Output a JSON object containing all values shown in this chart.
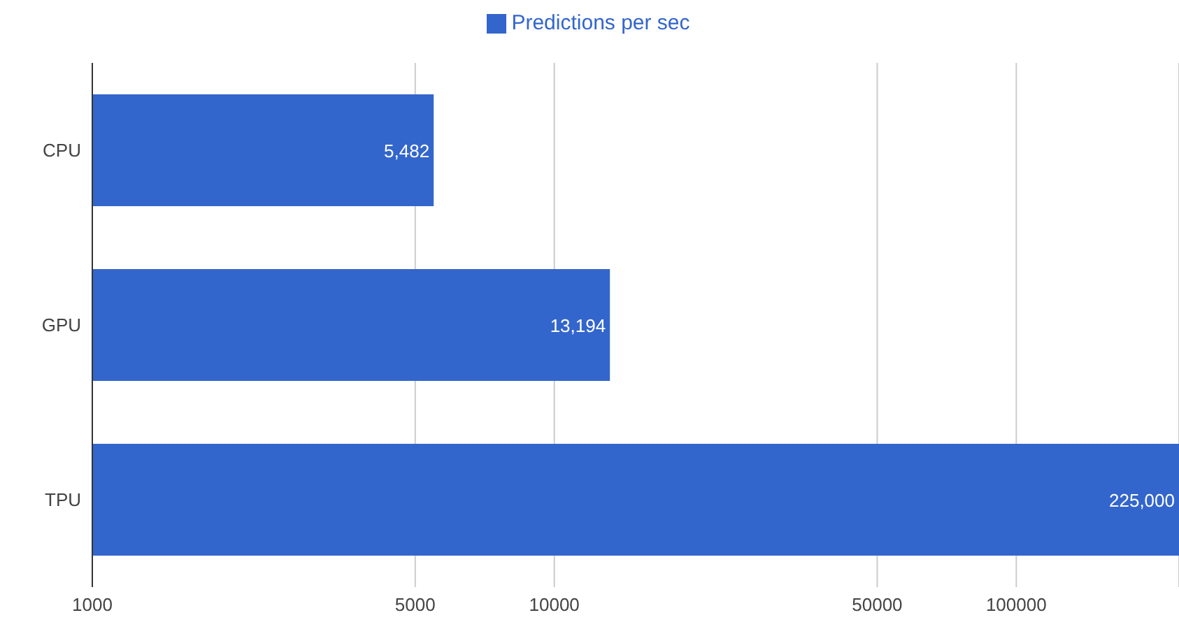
{
  "chart_data": {
    "type": "bar",
    "orientation": "horizontal",
    "log": "x",
    "categories": [
      "CPU",
      "GPU",
      "TPU"
    ],
    "series": [
      {
        "name": "Predictions per sec",
        "color": "#3366cc",
        "values": [
          5482,
          13194,
          225000
        ],
        "value_labels": [
          "5,482",
          "13,194",
          "225,000"
        ]
      }
    ],
    "xlim": [
      1000,
      225000
    ],
    "xticks": [
      1000,
      5000,
      10000,
      50000,
      100000
    ],
    "grid": "x",
    "legend": "top"
  }
}
